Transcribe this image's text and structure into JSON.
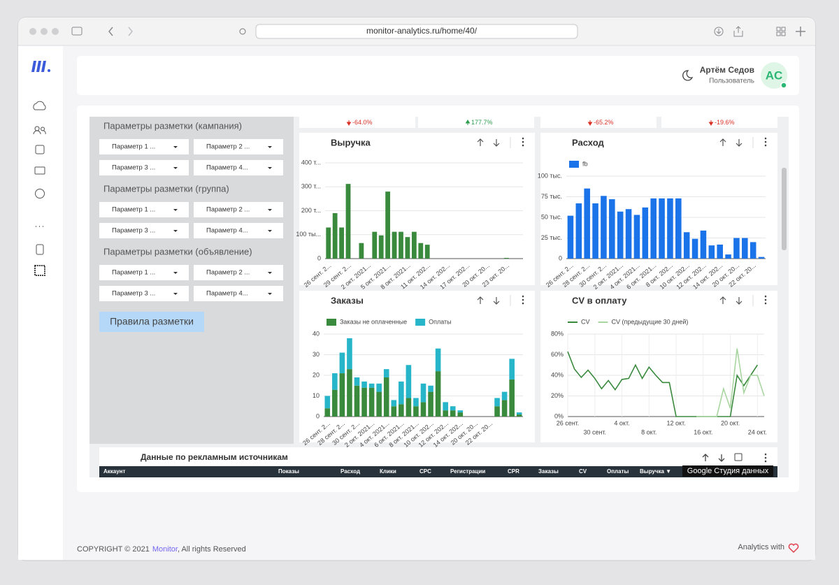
{
  "browser": {
    "url": "monitor-analytics.ru/home/40/"
  },
  "header": {
    "user_name": "Артём Седов",
    "user_role": "Пользователь",
    "avatar": "AC"
  },
  "filters": {
    "groups": [
      {
        "title": "Параметры разметки (кампания)",
        "options": [
          "Параметр 1 ...",
          "Параметр 2 ...",
          "Параметр 3 ...",
          "Параметр 4..."
        ]
      },
      {
        "title": "Параметры разметки (группа)",
        "options": [
          "Параметр 1 ...",
          "Параметр 2 ...",
          "Параметр 3 ...",
          "Параметр 4..."
        ]
      },
      {
        "title": "Параметры разметки (объявление)",
        "options": [
          "Параметр 1 ...",
          "Параметр 2 ...",
          "Параметр 3 ...",
          "Параметр 4..."
        ]
      }
    ],
    "button": "Правила разметки"
  },
  "kpi_deltas": [
    {
      "label": "-64.0%",
      "direction": "down"
    },
    {
      "label": "177.7%",
      "direction": "up"
    },
    {
      "label": "-65.2%",
      "direction": "down"
    },
    {
      "label": "-19.6%",
      "direction": "down"
    }
  ],
  "charts": [
    {
      "title": "Выручка",
      "type": "bar",
      "color": "#3a8a3e",
      "categories": [
        "26 сент. 2...",
        null,
        null,
        "29 сент. 2...",
        null,
        null,
        "2 окт. 2021...",
        null,
        null,
        "5 окт. 2021...",
        null,
        null,
        "8 окт. 2021...",
        null,
        null,
        "11 окт. 202...",
        null,
        null,
        "14 окт. 202...",
        null,
        null,
        "17 окт. 202...",
        null,
        null,
        "20 окт. 20...",
        null,
        null,
        "23 окт. 20...",
        null,
        null
      ],
      "values": [
        130000,
        190000,
        130000,
        312000,
        0,
        65000,
        0,
        112000,
        97000,
        280000,
        112000,
        112000,
        90000,
        112000,
        65000,
        58000,
        0,
        0,
        0,
        0,
        0,
        0,
        0,
        0,
        0,
        0,
        0,
        3000,
        0,
        0
      ],
      "ylim": [
        0,
        400000
      ],
      "yticks": [
        0,
        {
          "value": 100000,
          "label": "100 ты..."
        },
        {
          "value": 200000,
          "label": "200 т..."
        },
        {
          "value": 300000,
          "label": "300 т..."
        },
        {
          "value": 400000,
          "label": "400 т..."
        }
      ],
      "grid": true
    },
    {
      "title": "Расход",
      "type": "bar",
      "categories": [
        "26 сент. 2...",
        null,
        "28 сент. 2...",
        null,
        "30 сент. 2...",
        null,
        "2 окт. 2021...",
        null,
        "4 окт. 2021...",
        null,
        "6 окт. 2021...",
        null,
        "8 окт. 202...",
        null,
        "10 окт. 202...",
        null,
        "12 окт. 202...",
        null,
        "14 окт. 202...",
        null,
        "20 окт. 20...",
        null,
        "22 окт. 20...",
        null
      ],
      "series": [
        {
          "name": "fb",
          "color": "#1a73e8",
          "values": [
            52000,
            67000,
            85000,
            67000,
            76000,
            72000,
            57000,
            60000,
            53000,
            62000,
            73000,
            73000,
            73000,
            73000,
            32000,
            24000,
            34000,
            16000,
            17000,
            5000,
            25000,
            25000,
            20000,
            2000
          ]
        }
      ],
      "ylim": [
        0,
        100000
      ],
      "yticks": [
        0,
        {
          "value": 25000,
          "label": "25 тыс."
        },
        {
          "value": 50000,
          "label": "50 тыс."
        },
        {
          "value": 75000,
          "label": "75 тыс."
        },
        {
          "value": 100000,
          "label": "100 тыс."
        }
      ],
      "grid": true
    },
    {
      "title": "Заказы",
      "type": "stacked_bar",
      "categories": [
        "26 сент. 2...",
        null,
        "28 сент. 2...",
        null,
        "30 сент. 2...",
        null,
        "2 окт. 2021...",
        null,
        "4 окт. 2021...",
        null,
        "6 окт. 2021...",
        null,
        "8 окт. 2021...",
        null,
        "10 окт. 202...",
        null,
        "12 окт. 202...",
        null,
        "14 окт. 202...",
        null,
        "20 окт. 20...",
        null,
        "22 окт. 20...",
        null,
        null,
        null,
        null
      ],
      "series": [
        {
          "name": "Заказы не оплаченные",
          "color": "#3a8a3e",
          "values": [
            4,
            13,
            21,
            23,
            15,
            14,
            14,
            12,
            19,
            5,
            6,
            9,
            5,
            7,
            12,
            22,
            3,
            3,
            2,
            0,
            0,
            0,
            0,
            5,
            8,
            18,
            1
          ]
        },
        {
          "name": "Оплаты",
          "color": "#26b5c9",
          "values": [
            6,
            8,
            10,
            15,
            4,
            3,
            2,
            4,
            4,
            3,
            11,
            16,
            4,
            9,
            3,
            11,
            4,
            2,
            1,
            0,
            0,
            0,
            0,
            4,
            4,
            10,
            1
          ]
        }
      ],
      "ylim": [
        0,
        40
      ],
      "yticks": [
        0,
        10,
        20,
        30,
        40
      ],
      "grid": true
    },
    {
      "title": "CV в оплату",
      "type": "line",
      "categories": [
        "26 сент.",
        null,
        null,
        null,
        "30 сент.",
        null,
        null,
        null,
        "4 окт.",
        null,
        null,
        null,
        "8 окт.",
        null,
        null,
        null,
        "12 окт.",
        null,
        null,
        null,
        "16 окт.",
        null,
        null,
        null,
        "20 окт.",
        null,
        null,
        null,
        "24 окт.",
        null
      ],
      "series": [
        {
          "name": "CV",
          "color": "#3a8a3e",
          "values": [
            63,
            46,
            38,
            45,
            37,
            27,
            35,
            26,
            36,
            37,
            50,
            37,
            48,
            40,
            33,
            33,
            0,
            0,
            0,
            0,
            0,
            0,
            0,
            0,
            0,
            40,
            30,
            40,
            50,
            null
          ]
        },
        {
          "name": "CV (предыдущие 30 дней)",
          "color": "#a8d5a0",
          "values": [
            null,
            null,
            null,
            null,
            null,
            null,
            null,
            null,
            null,
            null,
            null,
            null,
            null,
            null,
            null,
            null,
            null,
            null,
            null,
            0,
            0,
            0,
            0,
            27,
            8,
            66,
            23,
            40,
            40,
            20
          ]
        }
      ],
      "ylim": [
        0,
        80
      ],
      "yticks": [
        {
          "value": 0,
          "label": "0%"
        },
        {
          "value": 20,
          "label": "20%"
        },
        {
          "value": 40,
          "label": "40%"
        },
        {
          "value": 60,
          "label": "60%"
        },
        {
          "value": 80,
          "label": "80%"
        }
      ],
      "grid": true
    }
  ],
  "table": {
    "title": "Данные по рекламным источникам",
    "columns": [
      "Аккаунт",
      "Показы",
      "Расход",
      "Клики",
      "CPC",
      "Регистрации",
      "CPR",
      "Заказы",
      "CV",
      "Оплаты",
      "Выручка ▼"
    ]
  },
  "watermark": "Google Студия данных",
  "footer": {
    "copyright": "COPYRIGHT © 2021",
    "brand": "Monitor",
    "rights": ", All rights Reserved",
    "credit": "Analytics with"
  }
}
